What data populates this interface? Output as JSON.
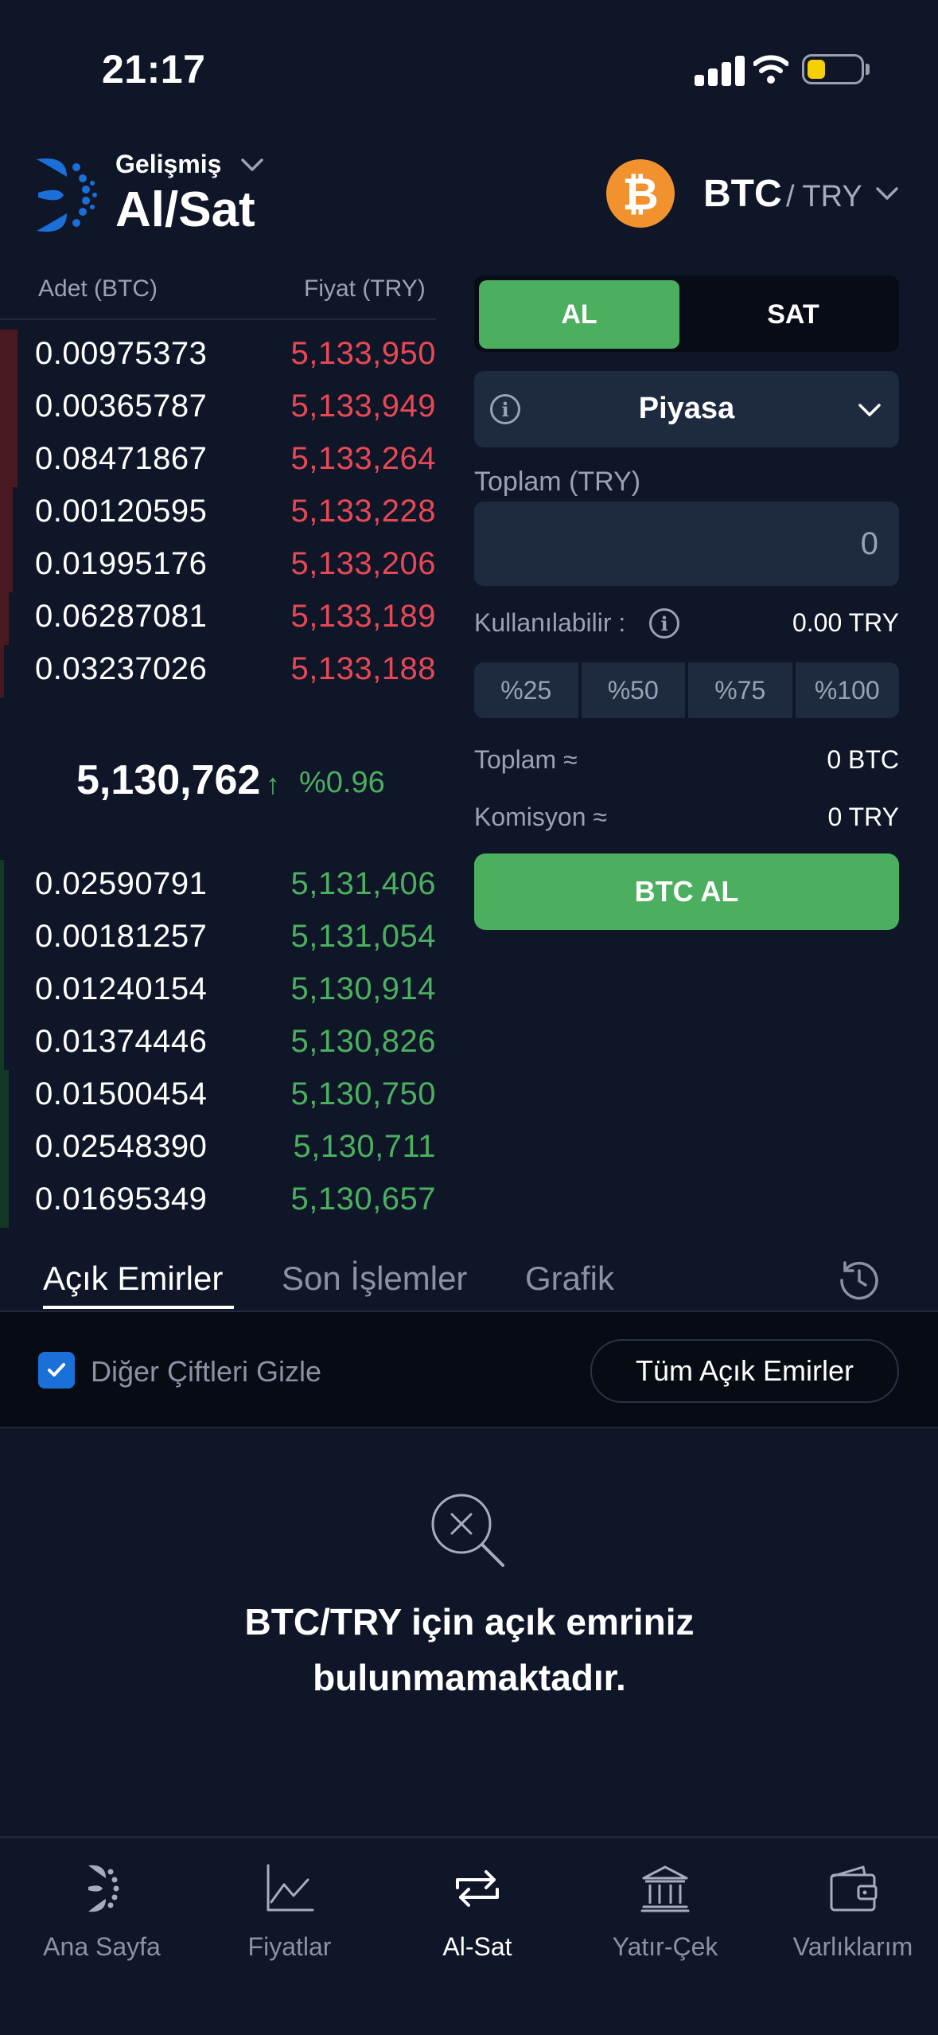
{
  "status_bar": {
    "time": "21:17"
  },
  "header": {
    "mode_label": "Gelişmiş",
    "title": "Al/Sat",
    "pair_base": "BTC",
    "pair_quote": "/ TRY"
  },
  "order_book": {
    "qty_header": "Adet (BTC)",
    "price_header": "Fiyat (TRY)",
    "asks": [
      {
        "qty": "0.00975373",
        "price": "5,133,950",
        "depth": 0.04
      },
      {
        "qty": "0.00365787",
        "price": "5,133,949",
        "depth": 0.04
      },
      {
        "qty": "0.08471867",
        "price": "5,133,264",
        "depth": 0.04
      },
      {
        "qty": "0.00120595",
        "price": "5,133,228",
        "depth": 0.03
      },
      {
        "qty": "0.01995176",
        "price": "5,133,206",
        "depth": 0.03
      },
      {
        "qty": "0.06287081",
        "price": "5,133,189",
        "depth": 0.02
      },
      {
        "qty": "0.03237026",
        "price": "5,133,188",
        "depth": 0.01
      }
    ],
    "mid_price": "5,130,762",
    "mid_arrow": "↑",
    "mid_change": "%0.96",
    "bids": [
      {
        "qty": "0.02590791",
        "price": "5,131,406",
        "depth": 0.01
      },
      {
        "qty": "0.00181257",
        "price": "5,131,054",
        "depth": 0.01
      },
      {
        "qty": "0.01240154",
        "price": "5,130,914",
        "depth": 0.01
      },
      {
        "qty": "0.01374446",
        "price": "5,130,826",
        "depth": 0.01
      },
      {
        "qty": "0.01500454",
        "price": "5,130,750",
        "depth": 0.02
      },
      {
        "qty": "0.02548390",
        "price": "5,130,711",
        "depth": 0.02
      },
      {
        "qty": "0.01695349",
        "price": "5,130,657",
        "depth": 0.02
      }
    ]
  },
  "trade_form": {
    "buy_label": "AL",
    "sell_label": "SAT",
    "order_type": "Piyasa",
    "total_label": "Toplam (TRY)",
    "total_placeholder": "0",
    "available_label": "Kullanılabilir :",
    "available_value": "0.00 TRY",
    "percent_buttons": [
      "%25",
      "%50",
      "%75",
      "%100"
    ],
    "sum_label": "Toplam ≈",
    "sum_value": "0 BTC",
    "fee_label": "Komisyon ≈",
    "fee_value": "0 TRY",
    "submit_label": "BTC AL"
  },
  "tabs": [
    "Açık Emirler",
    "Son İşlemler",
    "Grafik"
  ],
  "filter": {
    "hide_other_pairs_label": "Diğer Çiftleri Gizle",
    "hide_other_pairs_checked": true,
    "all_orders_button": "Tüm Açık Emirler"
  },
  "empty_state": {
    "line1": "BTC/TRY için açık emriniz",
    "line2": "bulunmamaktadır."
  },
  "bottom_nav": [
    {
      "label": "Ana Sayfa",
      "icon": "home-logo-icon"
    },
    {
      "label": "Fiyatlar",
      "icon": "chart-icon"
    },
    {
      "label": "Al-Sat",
      "icon": "exchange-icon",
      "active": true
    },
    {
      "label": "Yatır-Çek",
      "icon": "bank-icon"
    },
    {
      "label": "Varlıklarım",
      "icon": "wallet-icon"
    }
  ],
  "colors": {
    "background": "#0f1628",
    "buy_green": "#4caf5f",
    "sell_red": "#e84855",
    "btc_orange": "#f2922f"
  }
}
